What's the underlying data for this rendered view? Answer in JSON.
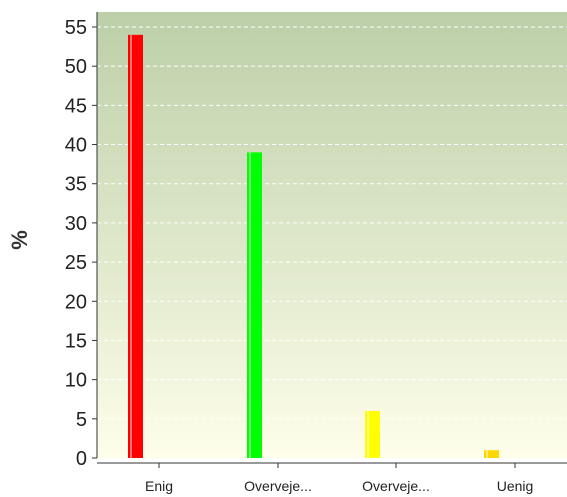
{
  "chart_data": {
    "type": "bar",
    "categories": [
      "Enig",
      "Overveje...",
      "Overveje...",
      "Uenig"
    ],
    "values": [
      54,
      39,
      6,
      1
    ],
    "colors": [
      "#ff0000",
      "#00ff00",
      "#ffff00",
      "#ffd700"
    ],
    "title": "",
    "xlabel": "",
    "ylabel": "%",
    "ylim": [
      0,
      55
    ],
    "yticks": [
      0,
      5,
      10,
      15,
      20,
      25,
      30,
      35,
      40,
      45,
      50,
      55
    ],
    "grid": "horizontal dashed",
    "background": {
      "top": "#bccfa8",
      "bottom": "#fefeea"
    }
  }
}
